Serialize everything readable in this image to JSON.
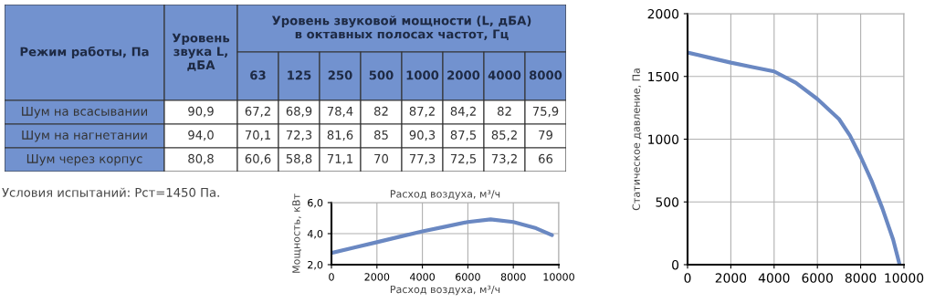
{
  "chart_data": [
    {
      "type": "other",
      "title": "Уровень звуковой мощности (L, дБА) в октавных полосах частот, Гц",
      "categories": [
        "Режим работы, Па",
        "Уровень звука L, дБА",
        "63",
        "125",
        "250",
        "500",
        "1000",
        "2000",
        "4000",
        "8000"
      ],
      "y_categories": [
        "Шум на всасывании",
        "Шум на нагнетании",
        "Шум через корпус"
      ],
      "cell_labels": [
        [
          "90,9",
          "67,2",
          "68,9",
          "78,4",
          "82",
          "87,2",
          "84,2",
          "82",
          "75,9"
        ],
        [
          "94,0",
          "70,1",
          "72,3",
          "81,6",
          "85",
          "90,3",
          "87,5",
          "85,2",
          "79"
        ],
        [
          "80,8",
          "60,6",
          "58,8",
          "71,1",
          "70",
          "77,3",
          "72,5",
          "73,2",
          "66"
        ]
      ],
      "color": "#7292cf",
      "annotations": [
        "Условия испытаний: Рст=1450 Па."
      ]
    },
    {
      "type": "line",
      "title": "Расход воздуха, м³/ч",
      "xlabel": "Расход воздуха, м³/ч",
      "ylabel": "Мощность, кВт",
      "x": [
        0,
        1000,
        2000,
        3000,
        4000,
        5000,
        6000,
        7000,
        8000,
        9000,
        9700
      ],
      "series": [
        {
          "color": "#6a88c2",
          "values": [
            2.75,
            3.1,
            3.45,
            3.8,
            4.15,
            4.45,
            4.75,
            4.92,
            4.75,
            4.35,
            3.9
          ]
        }
      ],
      "xlim": [
        0,
        10000
      ],
      "xticks": [
        0,
        2000,
        4000,
        6000,
        8000,
        10000
      ],
      "ylim": [
        2,
        6
      ],
      "yticks": [
        {
          "value": 2,
          "label": "2,0"
        },
        {
          "value": 4,
          "label": "4,0"
        },
        {
          "value": 6,
          "label": "6,0"
        }
      ],
      "grid": true
    },
    {
      "type": "line",
      "ylabel": "Статическое давление, Па",
      "x": [
        0,
        1000,
        2000,
        3000,
        4000,
        5000,
        6000,
        7000,
        7500,
        8000,
        8500,
        9000,
        9500,
        9800
      ],
      "series": [
        {
          "color": "#6a88c2",
          "values": [
            1690,
            1650,
            1610,
            1575,
            1540,
            1450,
            1320,
            1160,
            1030,
            860,
            670,
            450,
            200,
            0
          ]
        }
      ],
      "xlim": [
        0,
        10000
      ],
      "xticks": [
        0,
        2000,
        4000,
        6000,
        8000,
        10000
      ],
      "ylim": [
        0,
        2000
      ],
      "yticks": [
        0,
        500,
        1000,
        1500,
        2000
      ],
      "grid": true
    }
  ]
}
